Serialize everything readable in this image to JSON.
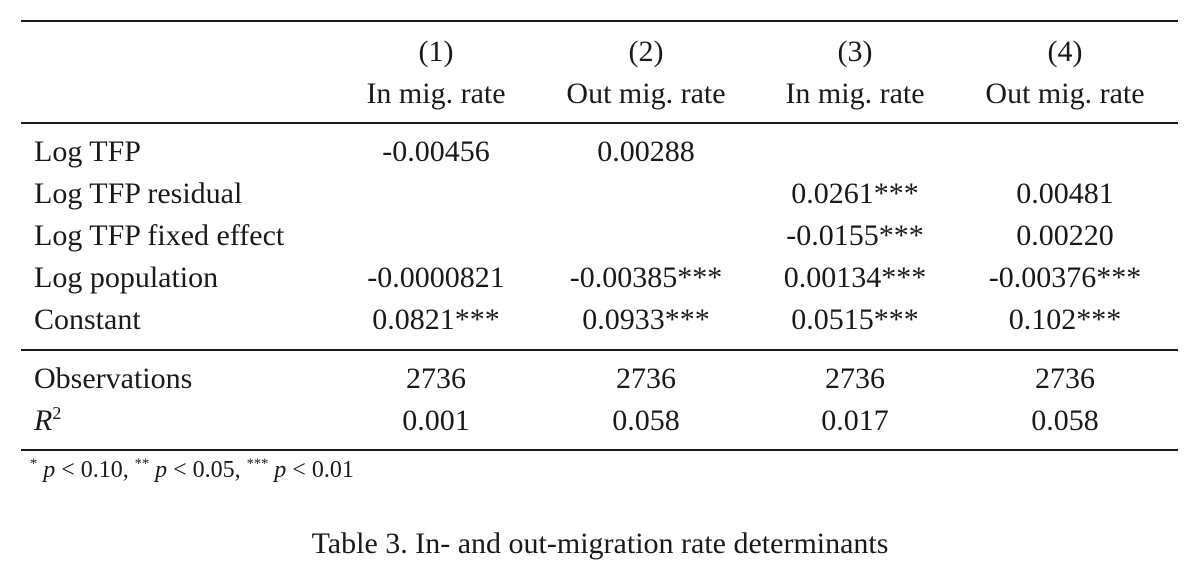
{
  "table": {
    "columns": [
      {
        "number": "(1)",
        "title": "In mig. rate"
      },
      {
        "number": "(2)",
        "title": "Out mig. rate"
      },
      {
        "number": "(3)",
        "title": "In mig. rate"
      },
      {
        "number": "(4)",
        "title": "Out mig. rate"
      }
    ],
    "rows": [
      {
        "label": "Log TFP",
        "values": [
          "-0.00456",
          "0.00288",
          "",
          ""
        ]
      },
      {
        "label": "Log TFP residual",
        "values": [
          "",
          "",
          "0.0261***",
          "0.00481"
        ]
      },
      {
        "label": "Log TFP fixed effect",
        "values": [
          "",
          "",
          "-0.0155***",
          "0.00220"
        ]
      },
      {
        "label": "Log population",
        "values": [
          "-0.0000821",
          "-0.00385***",
          "0.00134***",
          "-0.00376***"
        ]
      },
      {
        "label": "Constant",
        "values": [
          "0.0821***",
          "0.0933***",
          "0.0515***",
          "0.102***"
        ]
      }
    ],
    "stats": [
      {
        "label": "Observations",
        "values": [
          "2736",
          "2736",
          "2736",
          "2736"
        ]
      },
      {
        "label_main": "R",
        "label_sup": "2",
        "values": [
          "0.001",
          "0.058",
          "0.017",
          "0.058"
        ]
      }
    ]
  },
  "footnote": {
    "star1": "*",
    "p1": "p",
    "lt1": " < 0.10, ",
    "star2": "**",
    "p2": "p",
    "lt2": " < 0.05, ",
    "star3": "***",
    "p3": "p",
    "lt3": " < 0.01"
  },
  "caption": "Table 3. In- and out-migration rate determinants"
}
